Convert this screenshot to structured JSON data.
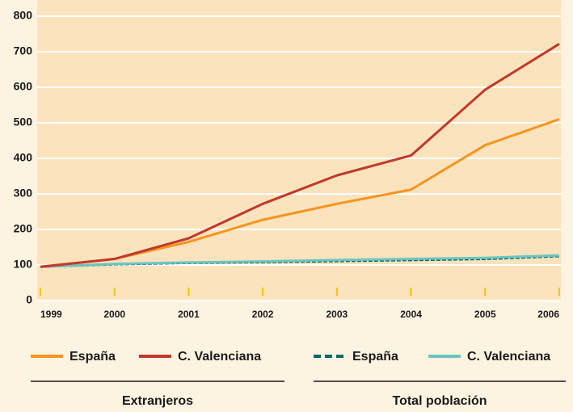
{
  "chart_data": {
    "type": "line",
    "x": [
      1999,
      2000,
      2001,
      2002,
      2003,
      2004,
      2005,
      2006
    ],
    "xlim": [
      1999,
      2006
    ],
    "xticks": [
      1999,
      2000,
      2001,
      2002,
      2003,
      2004,
      2005,
      2006
    ],
    "ylim": [
      0,
      800
    ],
    "yticks": [
      0,
      100,
      200,
      300,
      400,
      500,
      600,
      700,
      800
    ],
    "grid": true,
    "series_groups": [
      {
        "title": "Extranjeros",
        "series": [
          {
            "name": "España",
            "color": "#f7941d",
            "line_style": "solid",
            "values": [
              95,
              117,
              165,
              227,
              272,
              312,
              437,
              510
            ]
          },
          {
            "name": "C. Valenciana",
            "color": "#c0392b",
            "line_style": "solid",
            "values": [
              95,
              117,
              175,
              272,
              352,
              408,
              593,
              722
            ]
          }
        ]
      },
      {
        "title": "Total población",
        "series": [
          {
            "name": "España",
            "color": "#00676a",
            "line_style": "dashed",
            "values": [
              95,
              102,
              106,
              108,
              111,
              114,
              117,
              125
            ]
          },
          {
            "name": "C. Valenciana",
            "color": "#6cc5c0",
            "line_style": "solid",
            "values": [
              95,
              103,
              107,
              110,
              114,
              117,
              120,
              127
            ]
          }
        ]
      }
    ]
  }
}
